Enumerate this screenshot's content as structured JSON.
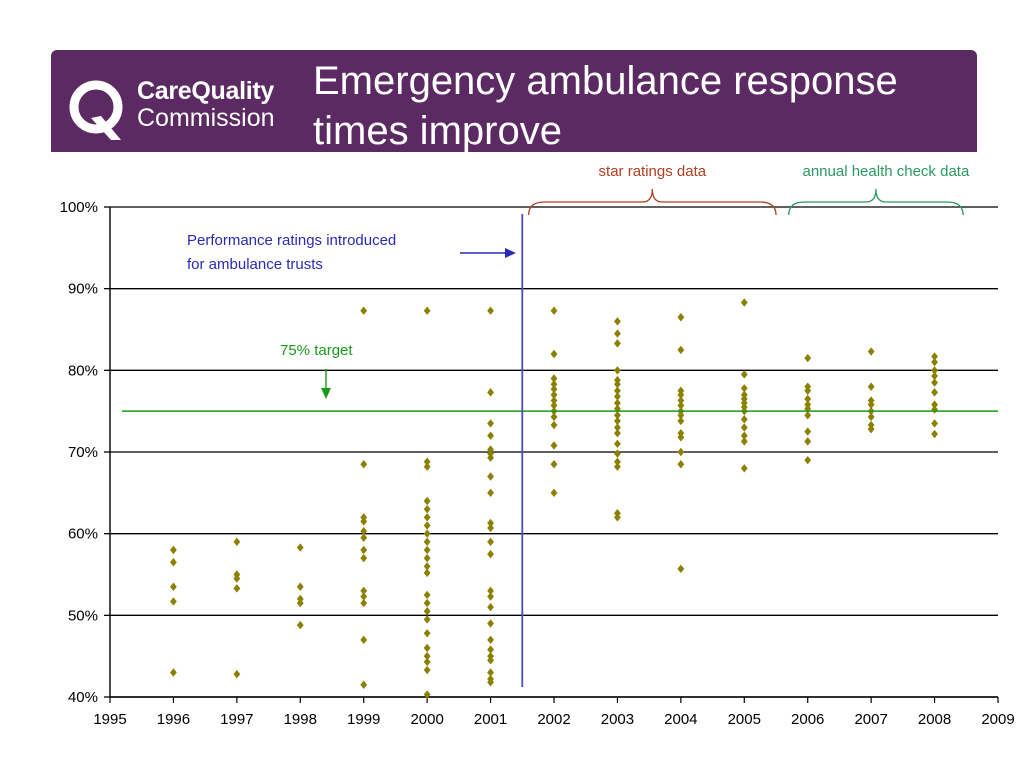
{
  "header": {
    "logo_line1": "CareQuality",
    "logo_line2": "Commission",
    "title_line1": "Emergency ambulance response",
    "title_line2": "times improve",
    "background": "#5b2a62"
  },
  "chart_data": {
    "type": "scatter",
    "title": "",
    "xlabel": "",
    "ylabel": "",
    "xlim": [
      1995,
      2009
    ],
    "ylim": [
      40,
      100
    ],
    "x_ticks": [
      "1995",
      "1996",
      "1997",
      "1998",
      "1999",
      "2000",
      "2001",
      "2002",
      "2003",
      "2004",
      "2005",
      "2006",
      "2007",
      "2008",
      "2009"
    ],
    "y_ticks": [
      "40%",
      "50%",
      "60%",
      "70%",
      "80%",
      "90%",
      "100%"
    ],
    "grid": "horizontal",
    "marker_color": "#8b8000",
    "points_by_year": [
      {
        "year": 1996,
        "values": [
          58,
          56.5,
          53.5,
          51.7,
          43
        ]
      },
      {
        "year": 1997,
        "values": [
          59,
          55,
          54.5,
          53.3,
          42.8
        ]
      },
      {
        "year": 1998,
        "values": [
          58.3,
          53.5,
          52,
          51.5,
          48.8
        ]
      },
      {
        "year": 1999,
        "values": [
          87.3,
          68.5,
          62,
          61.5,
          60.3,
          59.5,
          58,
          57,
          53,
          52.3,
          51.5,
          47,
          41.5
        ]
      },
      {
        "year": 2000,
        "values": [
          87.3,
          68.8,
          68.2,
          64,
          63,
          62,
          61,
          60,
          59,
          58,
          57,
          56,
          55.2,
          52.5,
          51.5,
          50.5,
          49.5,
          47.8,
          46,
          45,
          44.3,
          43.3,
          40.3
        ]
      },
      {
        "year": 2001,
        "values": [
          87.3,
          77.3,
          73.5,
          72,
          70.3,
          69.8,
          69.3,
          67,
          65,
          61.3,
          60.7,
          59,
          57.5,
          53,
          52.3,
          51,
          49,
          47,
          45.8,
          45,
          44.5,
          43,
          42.2,
          41.8
        ]
      },
      {
        "year": 2002,
        "values": [
          87.3,
          82,
          79,
          78.3,
          77.7,
          77,
          76.3,
          75.7,
          75,
          74.3,
          73.3,
          70.8,
          68.5,
          65
        ]
      },
      {
        "year": 2003,
        "values": [
          86,
          84.5,
          83.3,
          80,
          78.8,
          78.3,
          77.5,
          76.8,
          76,
          75.3,
          74.5,
          73.8,
          73,
          72.3,
          71,
          69.8,
          68.8,
          68.2,
          62.5,
          62
        ]
      },
      {
        "year": 2004,
        "values": [
          86.5,
          82.5,
          77.5,
          77,
          76.3,
          75.7,
          75,
          74.5,
          73.8,
          72.3,
          71.8,
          70,
          68.5,
          55.7
        ]
      },
      {
        "year": 2005,
        "values": [
          88.3,
          79.5,
          77.8,
          77,
          76.5,
          76,
          75.5,
          75,
          74,
          73,
          72,
          71.3,
          68
        ]
      },
      {
        "year": 2006,
        "values": [
          81.5,
          78,
          77.5,
          76.5,
          75.8,
          75.3,
          74.5,
          72.5,
          71.3,
          69
        ]
      },
      {
        "year": 2007,
        "values": [
          82.3,
          78,
          76.3,
          75.8,
          75,
          74.3,
          73.3,
          72.8
        ]
      },
      {
        "year": 2008,
        "values": [
          81.7,
          81,
          80,
          79.3,
          78.5,
          77.3,
          75.8,
          75.2,
          73.5,
          72.2
        ]
      }
    ],
    "target_line": {
      "value": 75,
      "color": "#1a9a1a"
    },
    "divider_x": 2001.5,
    "annotations": {
      "performance": {
        "line1": "Performance ratings introduced",
        "line2": "for ambulance trusts",
        "color": "#2a2ab4"
      },
      "target": {
        "label": "75% target",
        "color": "#1a9a1a"
      },
      "star": {
        "label": "star ratings data",
        "color": "#b04020",
        "x_from": 2001.6,
        "x_to": 2005.5
      },
      "annual": {
        "label": "annual health check data",
        "color": "#2a9a60",
        "x_from": 2005.7,
        "x_to": 2008.45
      }
    }
  }
}
